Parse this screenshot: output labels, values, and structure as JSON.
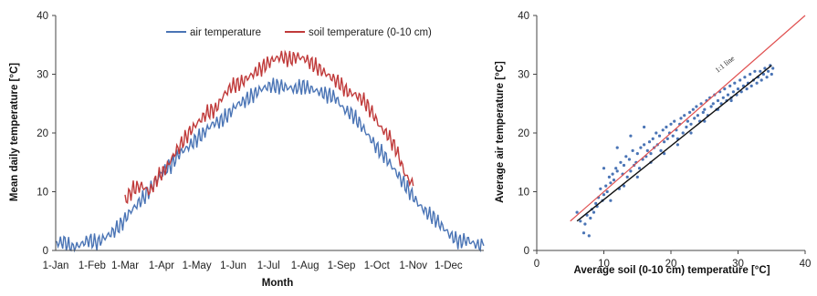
{
  "chart_data": [
    {
      "type": "line",
      "title": "",
      "xlabel": "Month",
      "ylabel": "Mean daily temperature [°C]",
      "ylim": [
        0,
        40
      ],
      "yticks": [
        "0",
        "10",
        "20",
        "30",
        "40"
      ],
      "x_tick_labels": [
        "1-Jan",
        "1-Feb",
        "1-Mar",
        "1-Apr",
        "1-May",
        "1-Jun",
        "1-Jul",
        "1-Aug",
        "1-Sep",
        "1-Oct",
        "1-Nov",
        "1-Dec"
      ],
      "x_tick_days": [
        1,
        32,
        60,
        91,
        121,
        152,
        182,
        213,
        244,
        274,
        305,
        335
      ],
      "legend_position": "top",
      "series": [
        {
          "name": "air temperature",
          "color": "#4a74b5",
          "x_day_of_year": [
            1,
            8,
            15,
            22,
            29,
            36,
            43,
            50,
            57,
            64,
            71,
            78,
            85,
            92,
            99,
            106,
            113,
            120,
            127,
            134,
            141,
            148,
            155,
            162,
            169,
            176,
            183,
            190,
            197,
            204,
            211,
            218,
            225,
            232,
            239,
            246,
            253,
            260,
            267,
            274,
            281,
            288,
            295,
            302,
            309,
            316,
            323,
            330,
            337,
            344,
            351,
            358,
            365
          ],
          "values": [
            1.2,
            1.5,
            0.3,
            1.0,
            1.8,
            1.3,
            2.2,
            3.2,
            4.5,
            6.5,
            8.0,
            9.5,
            11.5,
            13.5,
            14.5,
            16.5,
            17.5,
            18.8,
            20.0,
            21.5,
            22.0,
            23.2,
            24.8,
            25.5,
            26.5,
            27.5,
            28.0,
            28.0,
            27.8,
            27.5,
            28.0,
            27.5,
            27.0,
            26.5,
            26.0,
            24.0,
            23.2,
            21.5,
            19.5,
            17.5,
            16.0,
            14.0,
            12.0,
            10.0,
            8.0,
            6.5,
            5.5,
            4.0,
            2.5,
            1.5,
            1.8,
            1.0,
            0.8
          ]
        },
        {
          "name": "soil temperature (0-10 cm)",
          "color": "#c03a3a",
          "x_day_of_year": [
            60,
            67,
            74,
            81,
            88,
            95,
            102,
            109,
            116,
            123,
            130,
            137,
            144,
            151,
            158,
            165,
            172,
            179,
            186,
            193,
            200,
            207,
            214,
            221,
            228,
            235,
            242,
            249,
            256,
            263,
            270,
            277,
            284,
            291,
            298,
            305
          ],
          "values": [
            8.5,
            10.5,
            11.0,
            10.0,
            12.5,
            14.0,
            16.5,
            18.5,
            20.5,
            22.0,
            23.5,
            24.0,
            26.5,
            28.0,
            28.5,
            29.5,
            30.5,
            31.5,
            32.5,
            33.0,
            32.5,
            33.0,
            32.5,
            31.5,
            30.5,
            29.5,
            28.5,
            27.0,
            26.5,
            25.5,
            23.5,
            21.0,
            19.5,
            17.0,
            13.0,
            11.0
          ]
        }
      ]
    },
    {
      "type": "scatter",
      "title": "",
      "xlabel": "Average soil (0-10 cm) temperature [°C]",
      "ylabel": "Average air temperature [°C]",
      "xlim": [
        0,
        40
      ],
      "ylim": [
        0,
        40
      ],
      "xticks": [
        "0",
        "10",
        "20",
        "30",
        "40"
      ],
      "yticks": [
        "0",
        "10",
        "20",
        "30",
        "40"
      ],
      "annotation": "1:1 line",
      "reference_line": {
        "name": "1:1 line",
        "color": "#e05050",
        "points": [
          [
            5,
            5
          ],
          [
            40,
            40
          ]
        ]
      },
      "fit_line": {
        "color": "#111111",
        "points": [
          [
            6,
            5
          ],
          [
            35,
            31.5
          ]
        ]
      },
      "points_color": "#4a74b5",
      "points": [
        [
          6,
          6.5
        ],
        [
          6.5,
          5.0
        ],
        [
          7,
          3.0
        ],
        [
          7.2,
          4.5
        ],
        [
          7.5,
          6.0
        ],
        [
          7.8,
          2.5
        ],
        [
          8,
          5.5
        ],
        [
          8.2,
          7.0
        ],
        [
          8.5,
          6.5
        ],
        [
          8.8,
          8.0
        ],
        [
          9,
          7.5
        ],
        [
          9.2,
          9.0
        ],
        [
          9.5,
          10.5
        ],
        [
          9.8,
          8.5
        ],
        [
          10,
          9.5
        ],
        [
          10.3,
          11.0
        ],
        [
          10.5,
          10.0
        ],
        [
          10.8,
          12.5
        ],
        [
          11,
          11.5
        ],
        [
          11.3,
          13.0
        ],
        [
          11.5,
          12.0
        ],
        [
          11.8,
          14.0
        ],
        [
          12,
          13.5
        ],
        [
          12.3,
          10.5
        ],
        [
          12.5,
          15.0
        ],
        [
          12.8,
          13.0
        ],
        [
          13,
          14.5
        ],
        [
          13.3,
          16.0
        ],
        [
          13.5,
          12.5
        ],
        [
          13.8,
          15.5
        ],
        [
          14,
          13.5
        ],
        [
          14.3,
          17.0
        ],
        [
          14.5,
          14.5
        ],
        [
          14.8,
          15.0
        ],
        [
          15,
          16.5
        ],
        [
          15.3,
          14.0
        ],
        [
          15.5,
          17.5
        ],
        [
          15.8,
          15.5
        ],
        [
          16,
          18.0
        ],
        [
          16.3,
          16.0
        ],
        [
          16.5,
          17.0
        ],
        [
          16.8,
          18.5
        ],
        [
          17,
          16.5
        ],
        [
          17.3,
          19.0
        ],
        [
          17.5,
          17.5
        ],
        [
          17.8,
          20.0
        ],
        [
          18,
          18.0
        ],
        [
          18.3,
          19.5
        ],
        [
          18.5,
          17.0
        ],
        [
          18.8,
          20.5
        ],
        [
          19,
          18.5
        ],
        [
          19.3,
          21.0
        ],
        [
          19.5,
          19.0
        ],
        [
          19.8,
          20.0
        ],
        [
          20,
          21.5
        ],
        [
          20.3,
          19.5
        ],
        [
          20.5,
          22.0
        ],
        [
          20.8,
          20.5
        ],
        [
          21,
          19.0
        ],
        [
          21.3,
          21.5
        ],
        [
          21.5,
          22.5
        ],
        [
          21.8,
          20.0
        ],
        [
          22,
          23.0
        ],
        [
          22.3,
          21.0
        ],
        [
          22.5,
          22.0
        ],
        [
          22.8,
          23.5
        ],
        [
          23,
          21.5
        ],
        [
          23.3,
          24.0
        ],
        [
          23.5,
          22.5
        ],
        [
          23.8,
          24.5
        ],
        [
          24,
          23.0
        ],
        [
          24.3,
          22.0
        ],
        [
          24.5,
          25.0
        ],
        [
          24.8,
          23.5
        ],
        [
          25,
          24.0
        ],
        [
          25.3,
          25.5
        ],
        [
          25.5,
          23.0
        ],
        [
          25.8,
          26.0
        ],
        [
          26,
          24.5
        ],
        [
          26.3,
          25.0
        ],
        [
          26.5,
          26.5
        ],
        [
          26.8,
          24.0
        ],
        [
          27,
          25.5
        ],
        [
          27.3,
          27.0
        ],
        [
          27.5,
          25.0
        ],
        [
          27.8,
          26.0
        ],
        [
          28,
          27.5
        ],
        [
          28.3,
          25.5
        ],
        [
          28.5,
          26.5
        ],
        [
          28.8,
          28.0
        ],
        [
          29,
          26.0
        ],
        [
          29.3,
          27.0
        ],
        [
          29.5,
          28.5
        ],
        [
          29.8,
          26.5
        ],
        [
          30,
          27.5
        ],
        [
          30.3,
          29.0
        ],
        [
          30.5,
          27.0
        ],
        [
          30.8,
          28.0
        ],
        [
          31,
          29.5
        ],
        [
          31.3,
          27.5
        ],
        [
          31.5,
          28.5
        ],
        [
          31.8,
          30.0
        ],
        [
          32,
          28.0
        ],
        [
          32.3,
          29.0
        ],
        [
          32.5,
          30.5
        ],
        [
          32.8,
          28.5
        ],
        [
          33,
          29.5
        ],
        [
          33.3,
          30.5
        ],
        [
          33.5,
          29.0
        ],
        [
          33.8,
          30.0
        ],
        [
          34,
          31.0
        ],
        [
          34.3,
          29.5
        ],
        [
          34.5,
          30.5
        ],
        [
          34.8,
          31.5
        ],
        [
          35,
          30.0
        ],
        [
          35.2,
          31.0
        ],
        [
          12,
          17.5
        ],
        [
          14,
          19.5
        ],
        [
          16,
          21.0
        ],
        [
          10,
          14.0
        ],
        [
          11,
          8.5
        ],
        [
          13,
          11.0
        ],
        [
          15,
          12.5
        ],
        [
          17,
          15.0
        ],
        [
          19,
          16.5
        ],
        [
          21,
          18.0
        ],
        [
          23,
          20.0
        ],
        [
          25,
          22.0
        ],
        [
          27,
          24.0
        ],
        [
          29,
          25.5
        ]
      ]
    }
  ]
}
